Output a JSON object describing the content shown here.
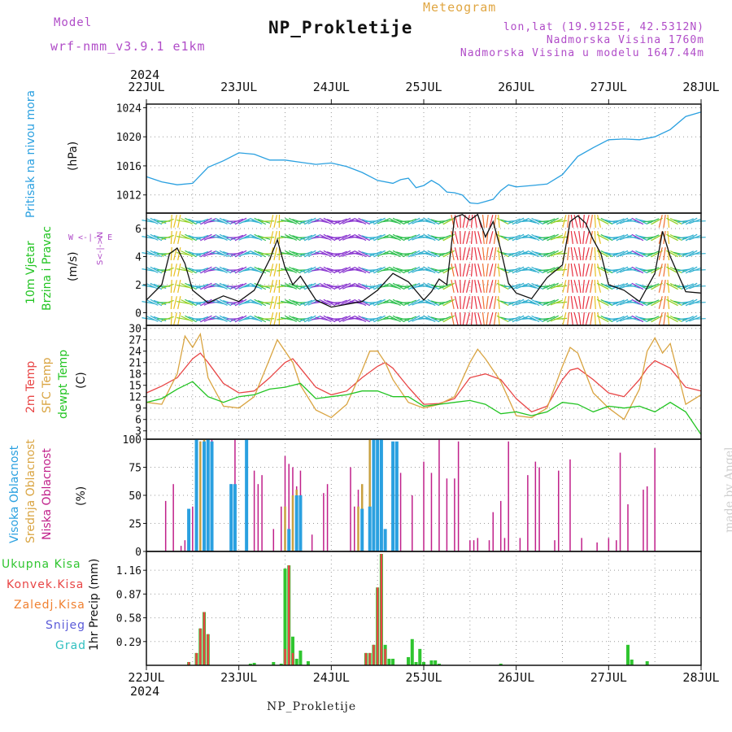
{
  "header": {
    "model_label": "Model",
    "model_name": "wrf-nmm_v3.9.1 e1km",
    "kind": "Meteogram",
    "station": "NP_Prokletije",
    "coords": "lon,lat (19.9125E, 42.5312N)",
    "altitude": "Nadmorska Visina 1760m",
    "model_altitude": "Nadmorska Visina u modelu 1647.44m",
    "year": "2024",
    "footer": "NP_Prokletije",
    "credit": "made by Angel"
  },
  "colors": {
    "pressure": "#2aa0e0",
    "t2m": "#e84545",
    "tsfc": "#d9a441",
    "dewpt": "#22c422",
    "high_cloud": "#2aa0e0",
    "mid_cloud": "#c8a040",
    "low_cloud": "#c0208a",
    "total_precip": "#2fc52f",
    "conv_precip": "#e84545",
    "frozen_precip": "#f08030",
    "snow": "#5a5ad8",
    "hail": "#30c0c0",
    "wind_purple": "#8a36d0",
    "wind_speed": "#111111"
  },
  "labels": {
    "pressure_name": "Pritisak na nivou mora",
    "pressure_unit": "(hPa)",
    "wind_name_1": "10m Vjetar",
    "wind_name_2": "Brzina i Pravac",
    "wind_unit": "(m/s)",
    "compass": "W <-|-> E",
    "compass_ns": "S<-|->N",
    "temp_2m": "2m Temp",
    "temp_sfc": "SFC Temp",
    "temp_dew": "dewpt Temp",
    "temp_unit": "(C)",
    "cloud_high": "Visoka Oblacnost",
    "cloud_mid": "Srednja Oblacnost",
    "cloud_low": "Niska Oblacnost",
    "cloud_unit": "(%)",
    "precip_total": "Ukupna Kisa",
    "precip_conv": "Konvek.Kisa",
    "precip_frozen": "Zaledj.Kisa",
    "precip_snow": "Snijeg",
    "precip_hail": "Grad",
    "precip_unit": "1hr Precip (mm)"
  },
  "chart_data": {
    "type": "meteogram",
    "x_dates": [
      "22JUL",
      "23JUL",
      "24JUL",
      "25JUL",
      "26JUL",
      "27JUL",
      "28JUL"
    ],
    "x_hours": [
      0,
      24,
      48,
      72,
      96,
      120,
      144
    ],
    "panels": [
      {
        "id": "pressure",
        "type": "line",
        "ylabel": "(hPa)",
        "yticks": [
          1012,
          1016,
          1020,
          1024
        ],
        "ylim": [
          1009.5,
          1024.5
        ],
        "series": [
          {
            "name": "Pritisak na nivou mora",
            "hours": [
              0,
              4,
              8,
              12,
              16,
              20,
              24,
              28,
              32,
              36,
              40,
              44,
              48,
              52,
              56,
              60,
              64,
              66,
              68,
              70,
              72,
              74,
              76,
              78,
              80,
              82,
              84,
              86,
              88,
              90,
              92,
              94,
              96,
              100,
              104,
              108,
              112,
              116,
              120,
              124,
              128,
              132,
              136,
              140,
              144
            ],
            "values": [
              1014.5,
              1013.8,
              1013.4,
              1013.6,
              1015.8,
              1016.7,
              1017.8,
              1017.6,
              1016.8,
              1016.8,
              1016.5,
              1016.2,
              1016.4,
              1015.9,
              1015.1,
              1014.0,
              1013.6,
              1014.1,
              1014.3,
              1013.0,
              1013.3,
              1014.0,
              1013.4,
              1012.4,
              1012.3,
              1012.0,
              1010.9,
              1010.8,
              1011.1,
              1011.4,
              1012.6,
              1013.4,
              1013.1,
              1013.3,
              1013.5,
              1014.8,
              1017.3,
              1018.5,
              1019.6,
              1019.7,
              1019.6,
              1020.0,
              1021.0,
              1022.8,
              1023.4
            ]
          }
        ]
      },
      {
        "id": "wind",
        "type": "line",
        "ylabel": "(m/s)",
        "yticks": [
          0,
          2,
          4,
          6
        ],
        "ylim": [
          -0.9,
          7.1
        ],
        "series": [
          {
            "name": "10m Vjetar",
            "hours": [
              0,
              4,
              6,
              8,
              10,
              12,
              16,
              20,
              24,
              28,
              32,
              34,
              36,
              38,
              40,
              44,
              48,
              52,
              56,
              60,
              64,
              68,
              72,
              74,
              76,
              78,
              80,
              82,
              84,
              86,
              88,
              90,
              92,
              94,
              96,
              100,
              104,
              108,
              110,
              112,
              114,
              116,
              118,
              120,
              124,
              128,
              132,
              134,
              136,
              140,
              144
            ],
            "values": [
              0.9,
              2.0,
              4.2,
              4.6,
              3.5,
              1.6,
              0.7,
              1.2,
              0.8,
              1.6,
              3.8,
              5.2,
              3.2,
              2.0,
              2.6,
              0.9,
              0.4,
              0.6,
              0.8,
              1.6,
              2.8,
              2.2,
              0.9,
              1.5,
              2.4,
              2.0,
              6.8,
              7.0,
              6.6,
              7.0,
              5.4,
              6.5,
              4.5,
              2.1,
              1.4,
              1.0,
              2.5,
              3.4,
              6.5,
              6.9,
              6.4,
              5.2,
              4.2,
              2.0,
              1.6,
              0.8,
              2.8,
              5.8,
              4.0,
              1.5,
              1.4
            ]
          }
        ]
      },
      {
        "id": "temperature",
        "type": "line",
        "ylabel": "(C)",
        "yticks": [
          3,
          6,
          9,
          12,
          15,
          18,
          21,
          24,
          27,
          30
        ],
        "ylim": [
          0.8,
          30.8
        ],
        "series": [
          {
            "name": "2m Temp",
            "hours": [
              0,
              4,
              8,
              12,
              14,
              16,
              20,
              24,
              28,
              32,
              36,
              38,
              40,
              44,
              48,
              52,
              56,
              60,
              62,
              64,
              68,
              72,
              76,
              80,
              84,
              88,
              92,
              96,
              100,
              104,
              108,
              110,
              112,
              116,
              120,
              124,
              128,
              130,
              132,
              136,
              140,
              144
            ],
            "values": [
              13.0,
              14.8,
              17.0,
              22.0,
              23.5,
              21.0,
              15.5,
              13.0,
              13.5,
              17.0,
              21.0,
              22.0,
              19.5,
              14.5,
              12.5,
              13.5,
              17.0,
              20.0,
              21.0,
              19.5,
              14.5,
              10.0,
              10.2,
              11.5,
              17.0,
              18.0,
              16.5,
              11.5,
              8.0,
              9.5,
              16.5,
              19.0,
              19.5,
              16.5,
              13.0,
              12.0,
              16.5,
              19.5,
              21.5,
              19.5,
              14.5,
              13.5
            ]
          },
          {
            "name": "SFC Temp",
            "hours": [
              0,
              4,
              8,
              10,
              12,
              14,
              16,
              20,
              24,
              28,
              32,
              34,
              36,
              38,
              40,
              44,
              48,
              52,
              56,
              58,
              60,
              62,
              64,
              68,
              72,
              76,
              80,
              84,
              86,
              88,
              92,
              96,
              100,
              104,
              108,
              110,
              112,
              116,
              120,
              124,
              128,
              130,
              132,
              134,
              136,
              140,
              144
            ],
            "values": [
              10.5,
              10.0,
              18.0,
              28.0,
              25.0,
              28.5,
              17.0,
              9.5,
              9.0,
              12.0,
              22.0,
              27.0,
              24.0,
              21.0,
              15.0,
              8.5,
              6.5,
              10.0,
              19.0,
              24.0,
              24.0,
              21.0,
              16.5,
              10.5,
              9.0,
              10.0,
              12.0,
              21.0,
              24.5,
              22.0,
              16.0,
              7.0,
              6.5,
              9.0,
              20.0,
              25.0,
              23.5,
              13.0,
              9.0,
              6.0,
              14.0,
              24.0,
              27.5,
              23.5,
              26.0,
              10.0,
              12.5
            ]
          },
          {
            "name": "dewpt Temp",
            "hours": [
              0,
              4,
              8,
              12,
              16,
              20,
              24,
              28,
              32,
              36,
              40,
              44,
              48,
              52,
              56,
              60,
              64,
              68,
              72,
              76,
              80,
              84,
              88,
              92,
              96,
              100,
              104,
              108,
              112,
              116,
              120,
              124,
              128,
              132,
              136,
              140,
              144
            ],
            "values": [
              10.5,
              11.5,
              14.0,
              16.0,
              12.0,
              10.5,
              12.0,
              12.5,
              14.0,
              14.5,
              15.5,
              11.5,
              12.0,
              12.5,
              13.5,
              13.5,
              12.0,
              12.0,
              9.5,
              10.0,
              10.5,
              11.0,
              10.0,
              7.5,
              8.0,
              7.0,
              8.0,
              10.5,
              10.0,
              8.0,
              9.5,
              9.0,
              9.5,
              8.0,
              10.5,
              8.0,
              2.0
            ]
          }
        ]
      },
      {
        "id": "clouds",
        "type": "bar",
        "ylabel": "(%)",
        "yticks": [
          0,
          25,
          50,
          75,
          100
        ],
        "ylim": [
          0,
          100
        ],
        "series": [
          {
            "name": "Niska Oblacnost",
            "hours": [
              5,
              7,
              9,
              10,
              11,
              12,
              13,
              14,
              15,
              16,
              17,
              22,
              23,
              26,
              28,
              29,
              30,
              33,
              35,
              36,
              37,
              38,
              39,
              40,
              43,
              46,
              47,
              53,
              54,
              55,
              56,
              58,
              59,
              60,
              61,
              64,
              66,
              69,
              72,
              74,
              76,
              78,
              80,
              81,
              84,
              85,
              86,
              89,
              90,
              92,
              93,
              94,
              97,
              99,
              101,
              102,
              106,
              107,
              110,
              113,
              117,
              120,
              122,
              123,
              125,
              129,
              130,
              132
            ],
            "values": [
              45,
              60,
              5,
              10,
              35,
              40,
              100,
              98,
              100,
              55,
              100,
              60,
              100,
              63,
              72,
              60,
              68,
              20,
              40,
              85,
              78,
              75,
              58,
              72,
              15,
              52,
              60,
              75,
              40,
              55,
              45,
              50,
              58,
              35,
              65,
              55,
              70,
              50,
              80,
              70,
              100,
              65,
              65,
              98,
              10,
              10,
              12,
              10,
              35,
              45,
              12,
              98,
              12,
              68,
              80,
              75,
              10,
              72,
              82,
              12,
              8,
              12,
              10,
              88,
              42,
              55,
              58,
              92
            ]
          },
          {
            "name": "Srednja Oblacnost",
            "hours": [
              11,
              13,
              14,
              15,
              16,
              36,
              38,
              39,
              40,
              55,
              56,
              58,
              59,
              60,
              61
            ],
            "values": [
              35,
              55,
              98,
              100,
              100,
              40,
              50,
              55,
              50,
              40,
              60,
              100,
              95,
              60,
              45
            ]
          },
          {
            "name": "Visoka Oblacnost",
            "hours": [
              11,
              13,
              15,
              16,
              17,
              22,
              23,
              26,
              37,
              39,
              40,
              56,
              58,
              59,
              60,
              61,
              62,
              64,
              65
            ],
            "values": [
              38,
              100,
              98,
              100,
              98,
              60,
              60,
              100,
              20,
              50,
              50,
              38,
              40,
              100,
              100,
              100,
              20,
              98,
              98
            ]
          }
        ]
      },
      {
        "id": "precip",
        "type": "bar",
        "ylabel": "1hr Precip (mm)",
        "yticks": [
          0.29,
          0.58,
          0.87,
          1.16
        ],
        "ylim": [
          0,
          1.39
        ],
        "series": [
          {
            "name": "Ukupna Kisa",
            "hours": [
              11,
              13,
              14,
              15,
              16,
              27,
              28,
              33,
              35,
              36,
              37,
              38,
              39,
              40,
              42,
              57,
              58,
              59,
              60,
              61,
              62,
              63,
              64,
              68,
              69,
              70,
              71,
              72,
              74,
              75,
              76,
              92,
              125,
              126,
              130
            ],
            "values": [
              0.04,
              0.15,
              0.45,
              0.65,
              0.38,
              0.02,
              0.03,
              0.04,
              0.02,
              1.18,
              1.22,
              0.35,
              0.08,
              0.18,
              0.05,
              0.15,
              0.15,
              0.25,
              0.95,
              1.36,
              0.25,
              0.08,
              0.08,
              0.1,
              0.32,
              0.04,
              0.2,
              0.04,
              0.06,
              0.06,
              0.02,
              0.02,
              0.25,
              0.07,
              0.05
            ]
          },
          {
            "name": "Konvek.Kisa",
            "hours": [
              11,
              13,
              14,
              15,
              16,
              36,
              37,
              38,
              57,
              58,
              59,
              60,
              61,
              62
            ],
            "values": [
              0.04,
              0.15,
              0.45,
              0.65,
              0.38,
              0.2,
              1.22,
              0.15,
              0.15,
              0.15,
              0.25,
              0.95,
              1.36,
              0.2
            ]
          }
        ]
      }
    ]
  }
}
